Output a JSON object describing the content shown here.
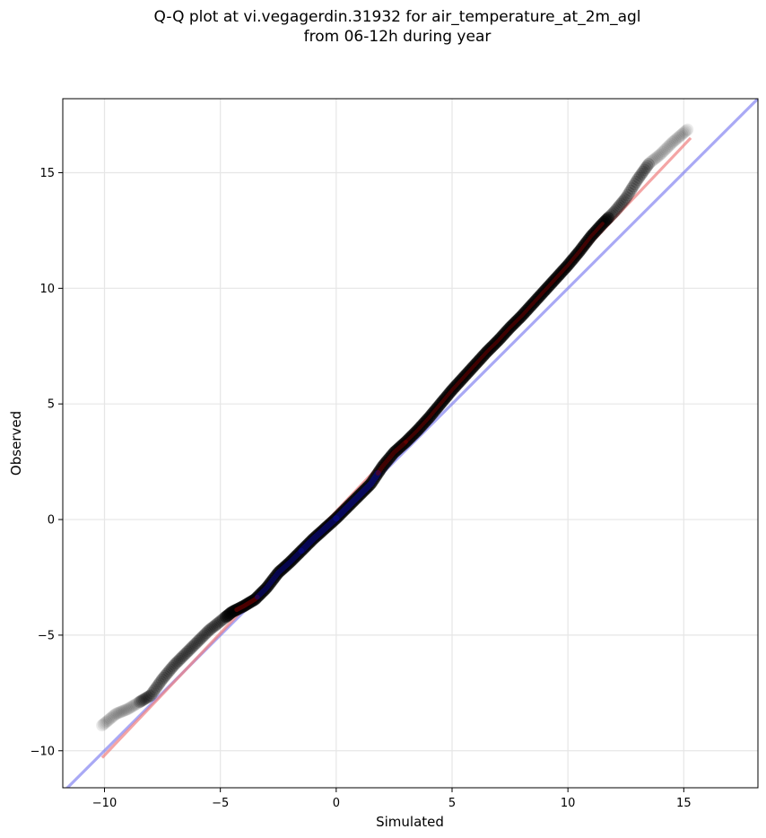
{
  "chart_data": {
    "type": "scatter",
    "title": [
      "Q-Q plot at vi.vegagerdin.31932 for air_temperature_at_2m_agl",
      "from 06-12h during year"
    ],
    "xlabel": "Simulated",
    "ylabel": "Observed",
    "xlim": [
      -11.8,
      18.2
    ],
    "ylim": [
      -11.6,
      18.2
    ],
    "xticks": [
      -10,
      -5,
      0,
      5,
      10,
      15
    ],
    "yticks": [
      -10,
      -5,
      0,
      5,
      10,
      15
    ],
    "xtick_labels": [
      "−10",
      "−5",
      "0",
      "5",
      "10",
      "15"
    ],
    "ytick_labels": [
      "−10",
      "−5",
      "0",
      "5",
      "10",
      "15"
    ],
    "grid": true,
    "colors": {
      "points": "#000000",
      "identity_line": "#6f6fef",
      "fit_line": "#ef7f7f",
      "central_red": "#8b0000",
      "central_blue": "#0a0a8a"
    },
    "identity_line": {
      "x": [
        -11.8,
        18.2
      ],
      "y": [
        -11.8,
        18.2
      ]
    },
    "fit_line": {
      "x": [
        -10.1,
        15.3
      ],
      "y": [
        -10.3,
        16.5
      ]
    },
    "quantile_curve": {
      "x": [
        -10.1,
        -9.5,
        -9.0,
        -8.5,
        -8.0,
        -7.5,
        -7.0,
        -6.5,
        -6.0,
        -5.5,
        -5.0,
        -4.5,
        -4.0,
        -3.5,
        -3.0,
        -2.5,
        -2.0,
        -1.5,
        -1.0,
        -0.5,
        0.0,
        0.5,
        1.0,
        1.5,
        2.0,
        2.5,
        3.0,
        3.5,
        4.0,
        4.5,
        5.0,
        5.5,
        6.0,
        6.5,
        7.0,
        7.5,
        8.0,
        8.5,
        9.0,
        9.5,
        10.0,
        10.5,
        11.0,
        11.5,
        12.0,
        12.5,
        13.0,
        13.5,
        14.0,
        14.5,
        15.2
      ],
      "y": [
        -8.9,
        -8.4,
        -8.2,
        -7.9,
        -7.6,
        -6.9,
        -6.3,
        -5.8,
        -5.3,
        -4.8,
        -4.4,
        -4.0,
        -3.75,
        -3.45,
        -2.95,
        -2.3,
        -1.85,
        -1.35,
        -0.85,
        -0.4,
        0.05,
        0.55,
        1.05,
        1.55,
        2.3,
        2.9,
        3.35,
        3.85,
        4.4,
        5.0,
        5.6,
        6.15,
        6.7,
        7.25,
        7.75,
        8.3,
        8.8,
        9.35,
        9.9,
        10.45,
        11.0,
        11.6,
        12.25,
        12.8,
        13.3,
        13.9,
        14.7,
        15.4,
        15.8,
        16.3,
        16.9
      ]
    }
  }
}
